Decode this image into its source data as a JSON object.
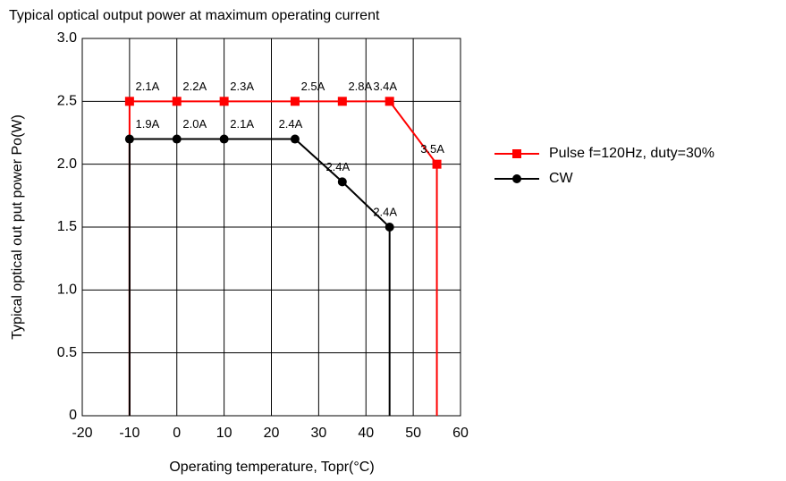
{
  "chart_data": {
    "type": "line",
    "title": "Typical optical output power at maximum operating current",
    "xlabel": "Operating temperature, Topr(°C)",
    "ylabel": "Typical optical out put power Po(W)",
    "series": [
      {
        "name": "Pulse f=120Hz, duty=30%",
        "color": "#ff0000",
        "marker": "square",
        "x": [
          -10,
          -10,
          0,
          10,
          25,
          35,
          45,
          55,
          55
        ],
        "values": [
          0,
          2.5,
          2.5,
          2.5,
          2.5,
          2.5,
          2.5,
          2.0,
          0
        ],
        "point_labels": [
          null,
          "2.1A",
          "2.2A",
          "2.3A",
          "2.5A",
          "2.8A",
          "3.4A",
          "3.5A",
          null
        ]
      },
      {
        "name": "CW",
        "color": "#000000",
        "marker": "circle",
        "x": [
          -10,
          -10,
          0,
          10,
          25,
          35,
          45,
          45
        ],
        "values": [
          0,
          2.2,
          2.2,
          2.2,
          2.2,
          1.86,
          1.5,
          0
        ],
        "point_labels": [
          null,
          "1.9A",
          "2.0A",
          "2.1A",
          "2.4A",
          "2.4A",
          "2.4A",
          null
        ]
      }
    ],
    "xlim": [
      -20,
      60
    ],
    "xticks": [
      -20,
      -10,
      0,
      10,
      20,
      30,
      40,
      50,
      60
    ],
    "ylim": [
      0,
      3
    ],
    "yticks": [
      0,
      0.5,
      {
        "value": 1,
        "label": "1.0"
      },
      1.5,
      {
        "value": 2,
        "label": "2.0"
      },
      2.5,
      {
        "value": 3,
        "label": "3.0"
      }
    ],
    "grid": true,
    "legend": "right"
  }
}
